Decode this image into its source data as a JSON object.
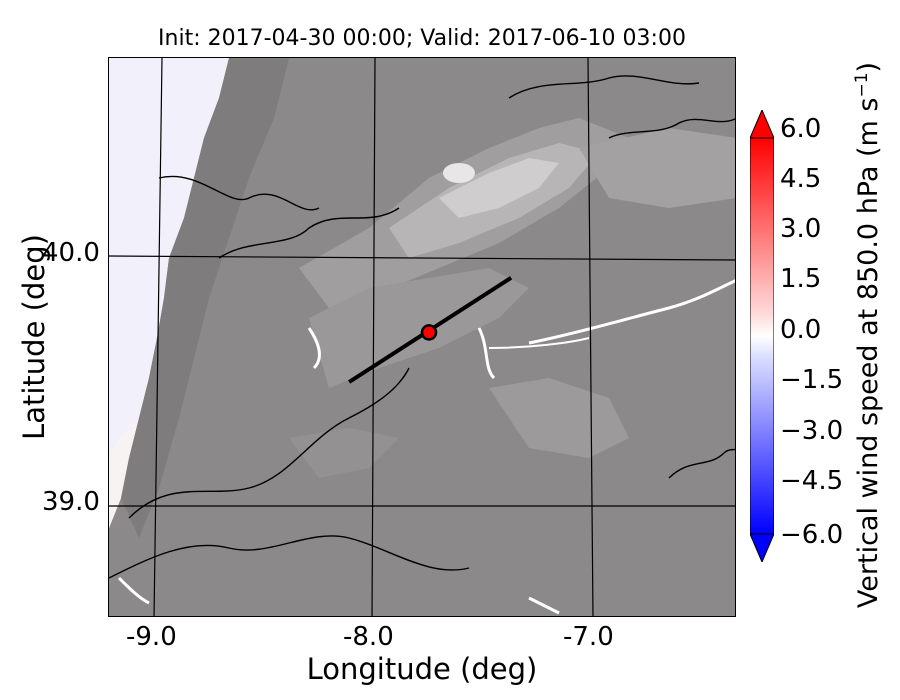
{
  "title": "Init: 2017-04-30 00:00; Valid: 2017-06-10 03:00",
  "map": {
    "xlabel": "Longitude (deg)",
    "ylabel": "Latitude (deg)",
    "xticks": [
      "-9.0",
      "-8.0",
      "-7.0"
    ],
    "yticks": [
      "40.0",
      "39.0"
    ],
    "cross_section_line": {
      "start": [
        -8.12,
        39.5
      ],
      "end": [
        -7.37,
        39.92
      ]
    },
    "marker": {
      "lon": -7.75,
      "lat": 39.7,
      "color": "#ff0000"
    }
  },
  "colorbar": {
    "label_main": "Vertical wind speed at 850.0 hPa (m s",
    "label_exp": "−1",
    "label_close": ")",
    "ticks": [
      "6.0",
      "4.5",
      "3.0",
      "1.5",
      "0.0",
      "−1.5",
      "−3.0",
      "−4.5",
      "−6.0"
    ],
    "min_color": "#0000ff",
    "max_color": "#ff0000",
    "mid_color": "#ffffff"
  }
}
